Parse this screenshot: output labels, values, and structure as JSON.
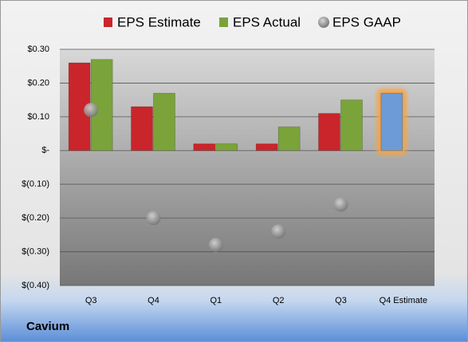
{
  "chart_data": {
    "type": "bar",
    "footer": "Cavium",
    "categories": [
      "Q3",
      "Q4",
      "Q1",
      "Q2",
      "Q3",
      "Q4 Estimate"
    ],
    "series": [
      {
        "name": "EPS Estimate",
        "color": "#c9252b",
        "values": [
          0.26,
          0.13,
          0.02,
          0.02,
          0.11,
          0.17
        ]
      },
      {
        "name": "EPS Actual",
        "color": "#7aa33a",
        "values": [
          0.27,
          0.17,
          0.02,
          0.07,
          0.15,
          null
        ]
      },
      {
        "name": "EPS GAAP",
        "color": "#a6a6a6",
        "marker": "circle",
        "values": [
          0.12,
          -0.2,
          -0.28,
          -0.24,
          -0.16,
          null
        ]
      }
    ],
    "highlight": {
      "index": 5,
      "color": "#6c9bd8",
      "glow": "#f5a445"
    },
    "ylim": [
      -0.4,
      0.3
    ],
    "yticks": [
      {
        "value": -0.4,
        "label": "$(0.40)"
      },
      {
        "value": -0.3,
        "label": "$(0.30)"
      },
      {
        "value": -0.2,
        "label": "$(0.20)"
      },
      {
        "value": -0.1,
        "label": "$(0.10)"
      },
      {
        "value": 0,
        "label": "$-"
      },
      {
        "value": 0.1,
        "label": "$0.10"
      },
      {
        "value": 0.2,
        "label": "$0.20"
      },
      {
        "value": 0.3,
        "label": "$0.30"
      }
    ],
    "grid": true
  }
}
